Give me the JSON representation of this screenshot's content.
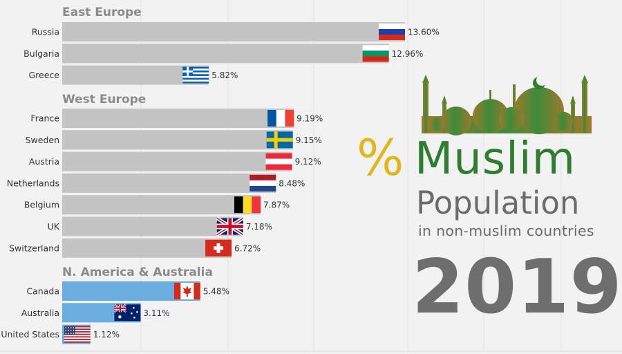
{
  "chart_data": {
    "type": "bar",
    "orientation": "horizontal",
    "title": "% Muslim Population",
    "title_parts": {
      "symbol": "%",
      "word1": "Muslim",
      "word2": "Population"
    },
    "subtitle": "in non-muslim countries",
    "year": "2019",
    "groups": [
      {
        "name": "East Europe",
        "color": "#c4c4c4",
        "items": [
          {
            "label": "Russia",
            "value": 13.6,
            "value_label": "13.60%",
            "flag": "russia"
          },
          {
            "label": "Bulgaria",
            "value": 12.96,
            "value_label": "12.96%",
            "flag": "bulgaria"
          },
          {
            "label": "Greece",
            "value": 5.82,
            "value_label": "5.82%",
            "flag": "greece"
          }
        ]
      },
      {
        "name": "West Europe",
        "color": "#c4c4c4",
        "items": [
          {
            "label": "France",
            "value": 9.19,
            "value_label": "9.19%",
            "flag": "france"
          },
          {
            "label": "Sweden",
            "value": 9.15,
            "value_label": "9.15%",
            "flag": "sweden"
          },
          {
            "label": "Austria",
            "value": 9.12,
            "value_label": "9.12%",
            "flag": "austria"
          },
          {
            "label": "Netherlands",
            "value": 8.48,
            "value_label": "8.48%",
            "flag": "netherlands"
          },
          {
            "label": "Belgium",
            "value": 7.87,
            "value_label": "7.87%",
            "flag": "belgium"
          },
          {
            "label": "UK",
            "value": 7.18,
            "value_label": "7.18%",
            "flag": "uk"
          },
          {
            "label": "Switzerland",
            "value": 6.72,
            "value_label": "6.72%",
            "flag": "switzerland"
          }
        ]
      },
      {
        "name": "N. America & Australia",
        "color": "#6aaee0",
        "items": [
          {
            "label": "Canada",
            "value": 5.48,
            "value_label": "5.48%",
            "flag": "canada"
          },
          {
            "label": "Australia",
            "value": 3.11,
            "value_label": "3.11%",
            "flag": "australia"
          },
          {
            "label": "United States",
            "value": 1.12,
            "value_label": "1.12%",
            "flag": "usa"
          }
        ]
      }
    ],
    "xlim": [
      0,
      13.6
    ],
    "grid": "vertical",
    "colors": {
      "accent_gold": "#e3b51b",
      "accent_green": "#2e7d32",
      "title_gray": "#6b6b6b"
    },
    "decoration": "mosque-silhouette-icon"
  }
}
